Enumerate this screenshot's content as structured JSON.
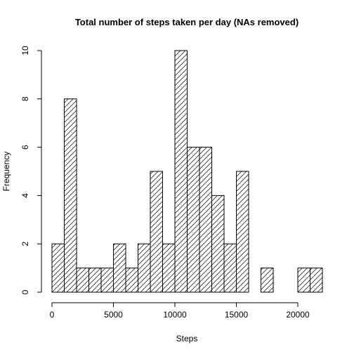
{
  "chart_data": {
    "type": "bar",
    "title": "Total number of steps taken per day (NAs removed)",
    "xlabel": "Steps",
    "ylabel": "Frequency",
    "bin_width": 1000,
    "bins": [
      {
        "start": 0,
        "end": 1000,
        "count": 2
      },
      {
        "start": 1000,
        "end": 2000,
        "count": 8
      },
      {
        "start": 2000,
        "end": 3000,
        "count": 1
      },
      {
        "start": 3000,
        "end": 4000,
        "count": 1
      },
      {
        "start": 4000,
        "end": 5000,
        "count": 1
      },
      {
        "start": 5000,
        "end": 6000,
        "count": 2
      },
      {
        "start": 6000,
        "end": 7000,
        "count": 1
      },
      {
        "start": 7000,
        "end": 8000,
        "count": 2
      },
      {
        "start": 8000,
        "end": 9000,
        "count": 5
      },
      {
        "start": 9000,
        "end": 10000,
        "count": 2
      },
      {
        "start": 10000,
        "end": 11000,
        "count": 10
      },
      {
        "start": 11000,
        "end": 12000,
        "count": 6
      },
      {
        "start": 12000,
        "end": 13000,
        "count": 6
      },
      {
        "start": 13000,
        "end": 14000,
        "count": 4
      },
      {
        "start": 14000,
        "end": 15000,
        "count": 2
      },
      {
        "start": 15000,
        "end": 16000,
        "count": 5
      },
      {
        "start": 16000,
        "end": 17000,
        "count": 0
      },
      {
        "start": 17000,
        "end": 18000,
        "count": 1
      },
      {
        "start": 18000,
        "end": 19000,
        "count": 0
      },
      {
        "start": 19000,
        "end": 20000,
        "count": 0
      },
      {
        "start": 20000,
        "end": 21000,
        "count": 1
      },
      {
        "start": 21000,
        "end": 22000,
        "count": 1
      }
    ],
    "xlim": [
      0,
      22000
    ],
    "ylim": [
      0,
      10
    ],
    "x_ticks": [
      0,
      5000,
      10000,
      15000,
      20000
    ],
    "y_ticks": [
      0,
      2,
      4,
      6,
      8,
      10
    ],
    "fill": "hatched",
    "bar_stroke": "#000000",
    "grid": false,
    "legend": "none"
  }
}
